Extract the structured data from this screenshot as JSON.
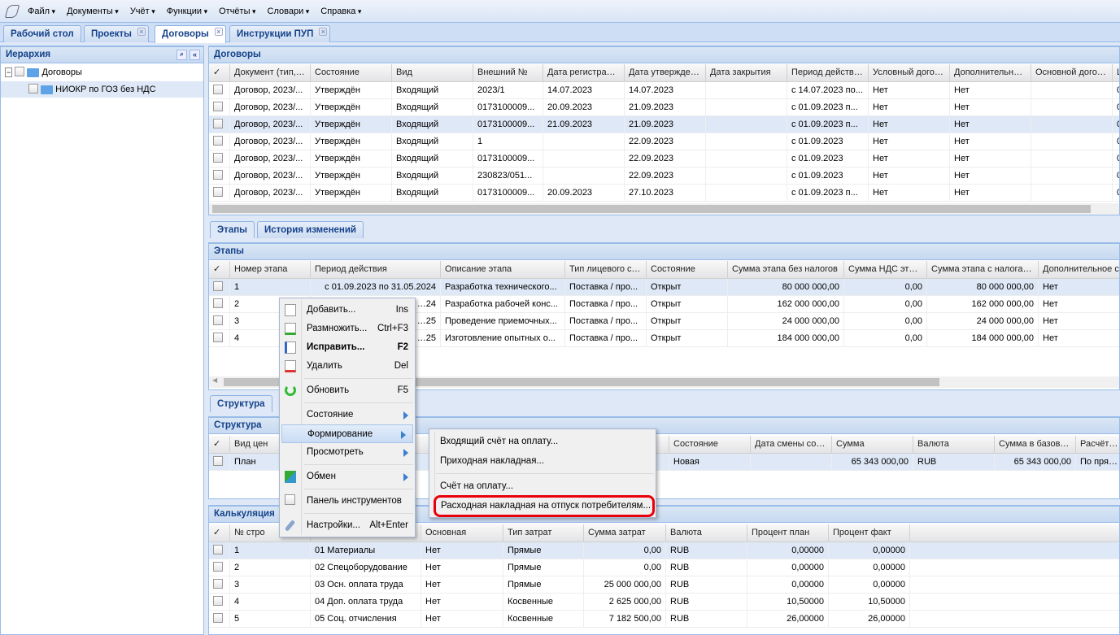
{
  "menu": [
    "Файл",
    "Документы",
    "Учёт",
    "Функции",
    "Отчёты",
    "Словари",
    "Справка"
  ],
  "tabs": [
    {
      "label": "Рабочий стол"
    },
    {
      "label": "Проекты"
    },
    {
      "label": "Договоры",
      "active": true
    },
    {
      "label": "Инструкции ПУП"
    }
  ],
  "hierarchy": {
    "title": "Иерархия",
    "items": [
      "Договоры",
      "НИОКР по ГОЗ без НДС"
    ]
  },
  "contracts": {
    "title": "Договоры",
    "columns": [
      "Документ (тип, №",
      "Состояние",
      "Вид",
      "Внешний №",
      "Дата регистрации.",
      "Дата утверждения",
      "Дата закрытия",
      "Период действия...",
      "Условный договор",
      "Дополнительное с",
      "Основной договор",
      "Ц"
    ],
    "rows": [
      [
        "Договор, 2023/...",
        "Утверждён",
        "Входящий",
        "2023/1",
        "14.07.2023",
        "14.07.2023",
        "",
        "с 14.07.2023 по...",
        "Нет",
        "Нет",
        "",
        "0"
      ],
      [
        "Договор, 2023/...",
        "Утверждён",
        "Входящий",
        "0173100009...",
        "20.09.2023",
        "21.09.2023",
        "",
        "с 01.09.2023 п...",
        "Нет",
        "Нет",
        "",
        "0"
      ],
      [
        "Договор, 2023/...",
        "Утверждён",
        "Входящий",
        "0173100009...",
        "21.09.2023",
        "21.09.2023",
        "",
        "с 01.09.2023 п...",
        "Нет",
        "Нет",
        "",
        "0"
      ],
      [
        "Договор, 2023/...",
        "Утверждён",
        "Входящий",
        "1",
        "",
        "22.09.2023",
        "",
        "с 01.09.2023",
        "Нет",
        "Нет",
        "",
        "0"
      ],
      [
        "Договор, 2023/...",
        "Утверждён",
        "Входящий",
        "0173100009...",
        "",
        "22.09.2023",
        "",
        "с 01.09.2023",
        "Нет",
        "Нет",
        "",
        "0"
      ],
      [
        "Договор, 2023/...",
        "Утверждён",
        "Входящий",
        "230823/051...",
        "",
        "22.09.2023",
        "",
        "с 01.09.2023",
        "Нет",
        "Нет",
        "",
        "0"
      ],
      [
        "Договор, 2023/...",
        "Утверждён",
        "Входящий",
        "0173100009...",
        "20.09.2023",
        "27.10.2023",
        "",
        "с 01.09.2023 п...",
        "Нет",
        "Нет",
        "",
        "0"
      ]
    ],
    "selected_row": 2
  },
  "subtabs": [
    "Этапы",
    "История изменений"
  ],
  "stages": {
    "title": "Этапы",
    "columns": [
      "Номер этапа",
      "Период действия",
      "Описание этапа",
      "Тип лицевого счёт",
      "Состояние",
      "Сумма этапа без налогов",
      "Сумма НДС этапа",
      "Сумма этапа с налогами",
      "Дополнительное с"
    ],
    "rows": [
      [
        "1",
        "с 01.09.2023 по 31.05.2024",
        "Разработка технического...",
        "Поставка / про...",
        "Открыт",
        "80 000 000,00",
        "0,00",
        "80 000 000,00",
        "Нет"
      ],
      [
        "2",
        "…24",
        "Разработка рабочей конс...",
        "Поставка / про...",
        "Открыт",
        "162 000 000,00",
        "0,00",
        "162 000 000,00",
        "Нет"
      ],
      [
        "3",
        "…25",
        "Проведение приемочных...",
        "Поставка / про...",
        "Открыт",
        "24 000 000,00",
        "0,00",
        "24 000 000,00",
        "Нет"
      ],
      [
        "4",
        "…25",
        "Изготовление опытных о...",
        "Поставка / про...",
        "Открыт",
        "184 000 000,00",
        "0,00",
        "184 000 000,00",
        "Нет"
      ]
    ]
  },
  "structure": {
    "tab": "Структура",
    "title": "Структура",
    "columns": [
      "Вид цен",
      "",
      "",
      "",
      "",
      "Состояние",
      "Дата смены состоя",
      "Сумма",
      "Валюта",
      "Сумма в базовой в",
      "Расчёт ко"
    ],
    "rows": [
      [
        "План",
        "",
        "",
        "",
        "",
        "Новая",
        "",
        "65 343 000,00",
        "RUB",
        "65 343 000,00",
        "По прямы"
      ]
    ]
  },
  "calc": {
    "title": "Калькуляция",
    "columns": [
      "№ стро",
      "",
      "Основная",
      "Тип затрат",
      "Сумма затрат",
      "Валюта",
      "Процент план",
      "Процент факт"
    ],
    "rows": [
      [
        "1",
        "01 Материалы",
        "Нет",
        "Прямые",
        "0,00",
        "RUB",
        "0,00000",
        "0,00000"
      ],
      [
        "2",
        "02 Спецоборудование",
        "Нет",
        "Прямые",
        "0,00",
        "RUB",
        "0,00000",
        "0,00000"
      ],
      [
        "3",
        "03 Осн. оплата труда",
        "Нет",
        "Прямые",
        "25 000 000,00",
        "RUB",
        "0,00000",
        "0,00000"
      ],
      [
        "4",
        "04 Доп. оплата труда",
        "Нет",
        "Косвенные",
        "2 625 000,00",
        "RUB",
        "10,50000",
        "10,50000"
      ],
      [
        "5",
        "05 Соц. отчисления",
        "Нет",
        "Косвенные",
        "7 182 500,00",
        "RUB",
        "26,00000",
        "26,00000"
      ]
    ]
  },
  "context_menu": [
    {
      "label": "Добавить...",
      "shortcut": "Ins",
      "icon": "document-icon"
    },
    {
      "label": "Размножить...",
      "shortcut": "Ctrl+F3",
      "icon": "document-add-icon"
    },
    {
      "label": "Исправить...",
      "shortcut": "F2",
      "icon": "document-edit-icon",
      "bold": true
    },
    {
      "label": "Удалить",
      "shortcut": "Del",
      "icon": "document-delete-icon",
      "sep": true
    },
    {
      "label": "Обновить",
      "shortcut": "F5",
      "icon": "refresh-icon",
      "sep": true
    },
    {
      "label": "Состояние",
      "submenu": true
    },
    {
      "label": "Формирование",
      "submenu": true,
      "highlight": true
    },
    {
      "label": "Просмотреть",
      "submenu": true,
      "sep": true
    },
    {
      "label": "Обмен",
      "submenu": true,
      "icon": "exchange-icon",
      "sep": true
    },
    {
      "label": "Панель инструментов",
      "icon": "checkbox-icon",
      "sep": true
    },
    {
      "label": "Настройки...",
      "shortcut": "Alt+Enter",
      "icon": "wrench-icon"
    }
  ],
  "submenu": [
    {
      "label": "Входящий счёт на оплату..."
    },
    {
      "label": "Приходная накладная...",
      "sep": true
    },
    {
      "label": "Счёт на оплату..."
    },
    {
      "label": "Расходная накладная на отпуск потребителям...",
      "outlined": true
    }
  ],
  "colors": {
    "accent": "#15428b",
    "highlight_outline": "#e8000b",
    "selected_row": "#dfe8f6"
  }
}
